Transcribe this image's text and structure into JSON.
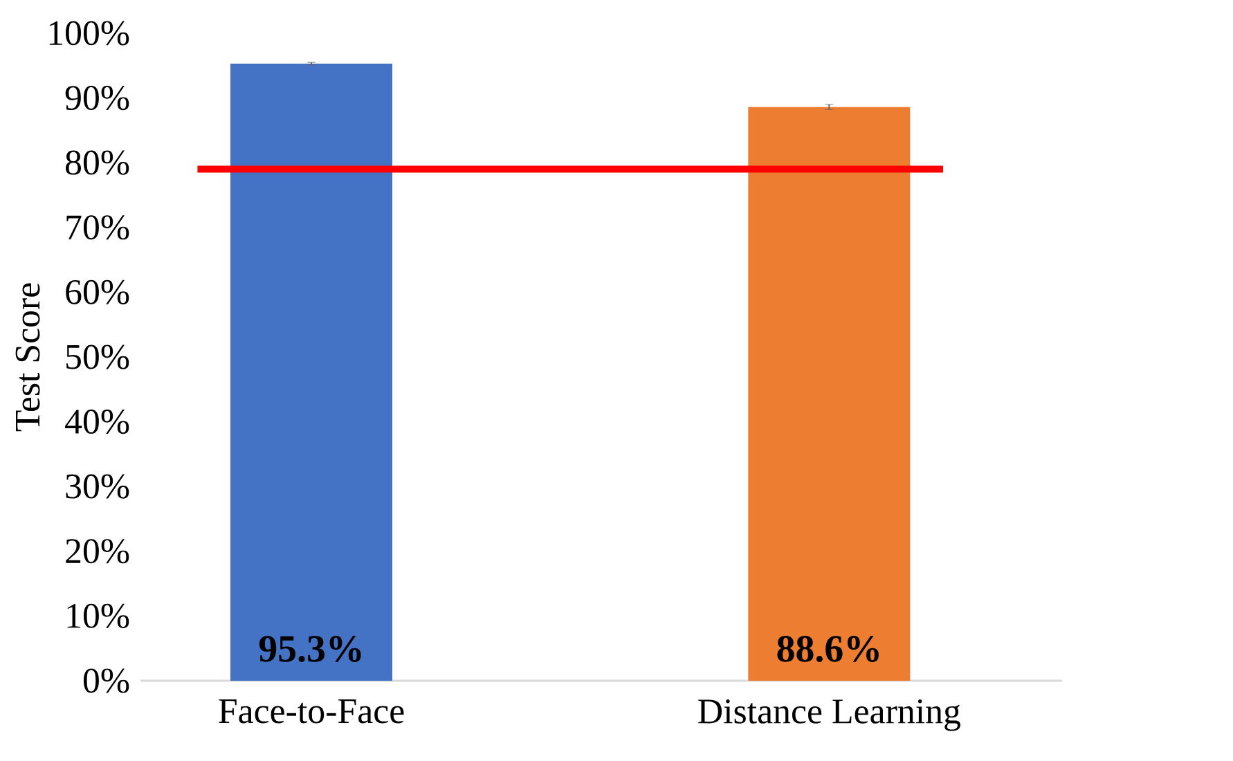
{
  "chart_data": {
    "type": "bar",
    "ylabel": "Test Score",
    "categories": [
      "Face-to-Face",
      "Distance Learning"
    ],
    "values": [
      95.3,
      88.6
    ],
    "colors": [
      "#4472c4",
      "#ed7d31"
    ],
    "errors": [
      0.2,
      0.4
    ],
    "value_labels": [
      "95.3%",
      "88.6%"
    ],
    "ylim": [
      0,
      100
    ],
    "yticks": [
      {
        "value": 0,
        "label": "0%"
      },
      {
        "value": 10,
        "label": "10%"
      },
      {
        "value": 20,
        "label": "20%"
      },
      {
        "value": 30,
        "label": "30%"
      },
      {
        "value": 40,
        "label": "40%"
      },
      {
        "value": 50,
        "label": "50%"
      },
      {
        "value": 60,
        "label": "60%"
      },
      {
        "value": 70,
        "label": "70%"
      },
      {
        "value": 80,
        "label": "80%"
      },
      {
        "value": 90,
        "label": "90%"
      },
      {
        "value": 100,
        "label": "100%"
      }
    ],
    "ref_lines": [
      {
        "axis": "y",
        "value": 79,
        "color": "#ff0000"
      }
    ],
    "grid": false
  }
}
